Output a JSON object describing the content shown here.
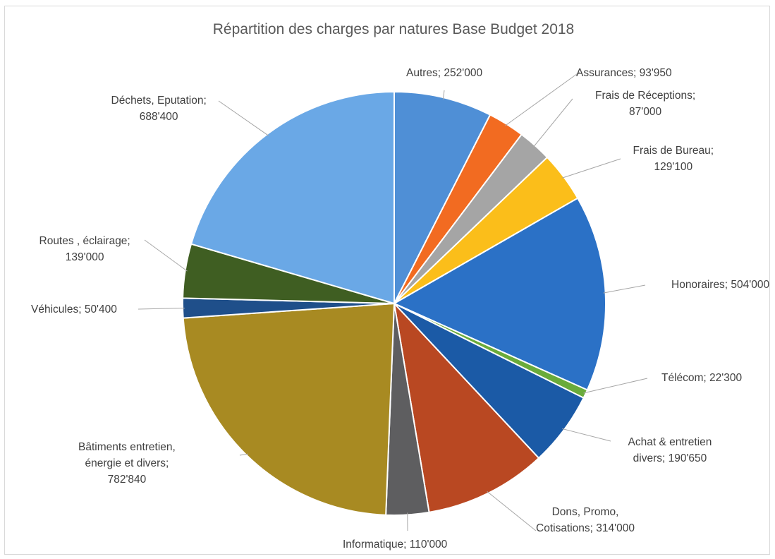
{
  "chart_data": {
    "type": "pie",
    "title": "Répartition des charges par natures Base Budget 2018",
    "start_angle_deg": 0,
    "direction": "clockwise",
    "legend": "none",
    "slices": [
      {
        "name": "Autres",
        "value": 252000,
        "value_label": "252'000",
        "color": "#4f8fd6",
        "label_lines": [
          "Autres; 252'000"
        ]
      },
      {
        "name": "Assurances",
        "value": 93950,
        "value_label": "93'950",
        "color": "#f26b21",
        "label_lines": [
          "Assurances; 93'950"
        ]
      },
      {
        "name": "Frais de Réceptions",
        "value": 87000,
        "value_label": "87'000",
        "color": "#a5a5a5",
        "label_lines": [
          "Frais de Réceptions;",
          "87'000"
        ]
      },
      {
        "name": "Frais de Bureau",
        "value": 129100,
        "value_label": "129'100",
        "color": "#fbbe1a",
        "label_lines": [
          "Frais de Bureau;",
          "129'100"
        ]
      },
      {
        "name": "Honoraires",
        "value": 504000,
        "value_label": "504'000",
        "color": "#2b71c6",
        "label_lines": [
          "Honoraires; 504'000"
        ]
      },
      {
        "name": "Télécom",
        "value": 22300,
        "value_label": "22'300",
        "color": "#6aab3b",
        "label_lines": [
          "Télécom; 22'300"
        ]
      },
      {
        "name": "Achat & entretien divers",
        "value": 190650,
        "value_label": "190'650",
        "color": "#1b5aa6",
        "label_lines": [
          "Achat & entretien",
          "divers; 190'650"
        ]
      },
      {
        "name": "Dons, Promo, Cotisations",
        "value": 314000,
        "value_label": "314'000",
        "color": "#b94822",
        "label_lines": [
          "Dons, Promo,",
          "Cotisations; 314'000"
        ]
      },
      {
        "name": "Informatique",
        "value": 110000,
        "value_label": "110'000",
        "color": "#5e5e60",
        "label_lines": [
          "Informatique; 110'000"
        ]
      },
      {
        "name": "Bâtiments entretien, énergie et divers",
        "value": 782840,
        "value_label": "782'840",
        "color": "#a88a22",
        "label_lines": [
          "Bâtiments entretien,",
          "énergie et divers;",
          "782'840"
        ]
      },
      {
        "name": "Véhicules",
        "value": 50400,
        "value_label": "50'400",
        "color": "#1f4f8a",
        "label_lines": [
          "Véhicules; 50'400"
        ]
      },
      {
        "name": "Routes , éclairage",
        "value": 139000,
        "value_label": "139'000",
        "color": "#3f5e22",
        "label_lines": [
          "Routes , éclairage;",
          "139'000"
        ]
      },
      {
        "name": "Déchets, Eputation",
        "value": 688400,
        "value_label": "688'400",
        "color": "#6aa8e6",
        "label_lines": [
          "Déchets, Eputation;",
          "688'400"
        ]
      }
    ]
  }
}
